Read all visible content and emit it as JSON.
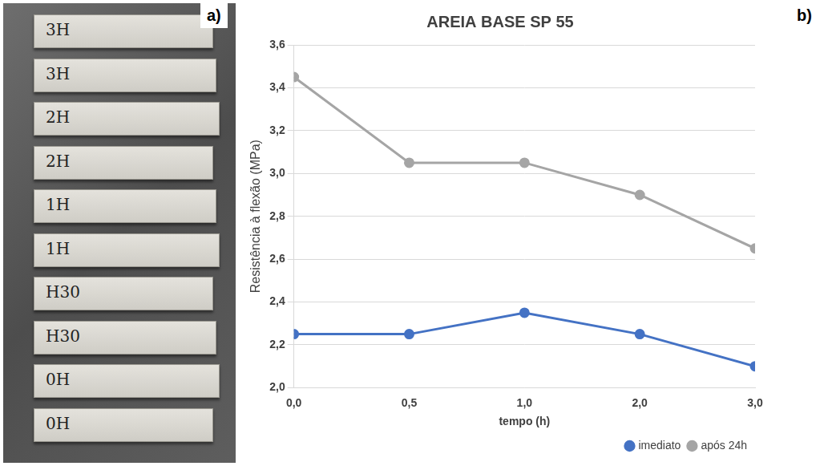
{
  "photo": {
    "panel_label": "a)",
    "specimen_labels": [
      "3H",
      "3H",
      "2H",
      "2H",
      "1H",
      "1H",
      "H30",
      "H30",
      "0H",
      "0H"
    ]
  },
  "chart_data": {
    "type": "line",
    "panel_label": "b)",
    "title": "AREIA BASE SP 55",
    "x_label": "tempo (h)",
    "y_label": "Resistência à flexão (MPa)",
    "categories": [
      "0,0",
      "0,5",
      "1,0",
      "2,0",
      "3,0"
    ],
    "series": [
      {
        "name": "imediato",
        "color": "#4472c4",
        "values": [
          2.25,
          2.25,
          2.35,
          2.25,
          2.1
        ]
      },
      {
        "name": "após 24h",
        "color": "#a5a5a5",
        "values": [
          3.45,
          3.05,
          3.05,
          2.9,
          2.65
        ]
      }
    ],
    "ylim": [
      2.0,
      3.6
    ],
    "yticks": [
      {
        "value": 2.0,
        "label": "2,0"
      },
      {
        "value": 2.2,
        "label": "2,2"
      },
      {
        "value": 2.4,
        "label": "2,4"
      },
      {
        "value": 2.6,
        "label": "2,6"
      },
      {
        "value": 2.8,
        "label": "2,8"
      },
      {
        "value": 3.0,
        "label": "3,0"
      },
      {
        "value": 3.2,
        "label": "3,2"
      },
      {
        "value": 3.4,
        "label": "3,4"
      },
      {
        "value": 3.6,
        "label": "3,6"
      }
    ],
    "grid": true,
    "legend": "bottom-right",
    "marker": "circle",
    "line_style": "solid"
  }
}
